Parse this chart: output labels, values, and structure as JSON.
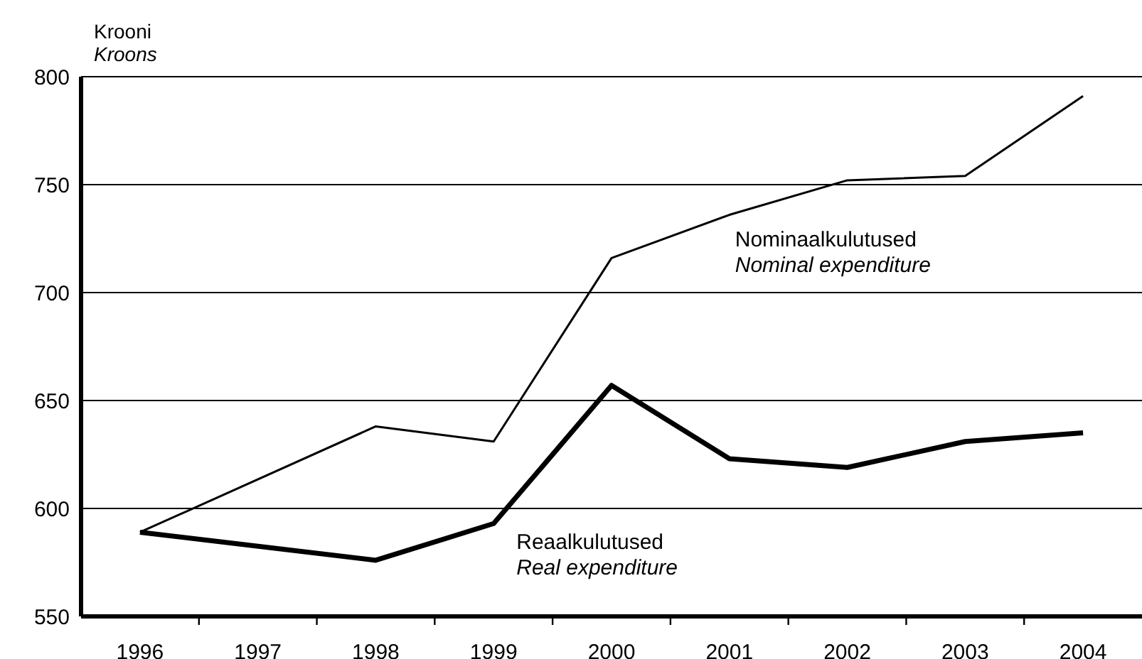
{
  "chart_data": {
    "type": "line",
    "ylabel": "Krooni\nKroons",
    "categories": [
      "1996",
      "1997",
      "1998",
      "1999",
      "2000",
      "2001",
      "2002",
      "2003",
      "2004"
    ],
    "series": [
      {
        "name": "Nominaalkulutused\nNominal expenditure",
        "color": "#000000",
        "values": [
          589,
          null,
          638,
          631,
          716,
          736,
          752,
          754,
          791
        ]
      },
      {
        "name": "Reaalkulutused\nReal expenditure",
        "color": "#000000",
        "values": [
          589,
          null,
          576,
          593,
          657,
          623,
          619,
          631,
          635
        ]
      }
    ],
    "ylim": [
      550,
      800
    ],
    "yticks": [
      550,
      600,
      650,
      700,
      750,
      800
    ],
    "grid": "y",
    "legend": false,
    "marker": "none",
    "line_style": "solid"
  }
}
